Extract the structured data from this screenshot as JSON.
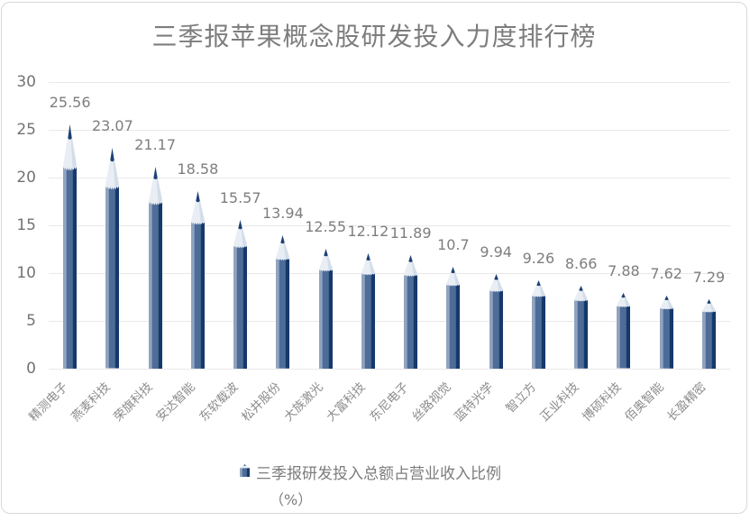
{
  "page": {
    "background": "#ffffff",
    "card_border": "#d8d8d8"
  },
  "chart_data": {
    "type": "bar",
    "bar_style": "pencil",
    "title": "三季报苹果概念股研发投入力度排行榜",
    "categories": [
      "精测电子",
      "燕麦科技",
      "荣旗科技",
      "安达智能",
      "东软载波",
      "松井股份",
      "大族激光",
      "大富科技",
      "东尼电子",
      "丝路视觉",
      "蓝特光学",
      "智立方",
      "正业科技",
      "博硕科技",
      "佰奥智能",
      "长盈精密"
    ],
    "values": [
      25.56,
      23.07,
      21.17,
      18.58,
      15.57,
      13.94,
      12.55,
      12.12,
      11.89,
      10.7,
      9.94,
      9.26,
      8.66,
      7.88,
      7.62,
      7.29
    ],
    "legend": {
      "label": "三季报研发投入总额占营业收入比例",
      "unit_line": "（%）",
      "position": "bottom"
    },
    "xlabel": "",
    "ylabel": "",
    "ylim": [
      0,
      30
    ],
    "yticks": [
      0,
      5,
      10,
      15,
      20,
      25,
      30
    ],
    "grid": true,
    "colors": {
      "bar_body_light": "#91a3bf",
      "bar_body_mid": "#4d6c97",
      "bar_body_dark": "#15396b",
      "tip_wood": "#e9eef5",
      "tip_wood_shade": "#d4dde9",
      "tip_lead": "#1d4074",
      "title_gray": "#7d7d7d",
      "value_label_gray": "#7e7e7e",
      "axis_label_gray": "#737373",
      "category_label_gray": "#8c8c8c",
      "grid_line": "#e9e9e9"
    }
  }
}
